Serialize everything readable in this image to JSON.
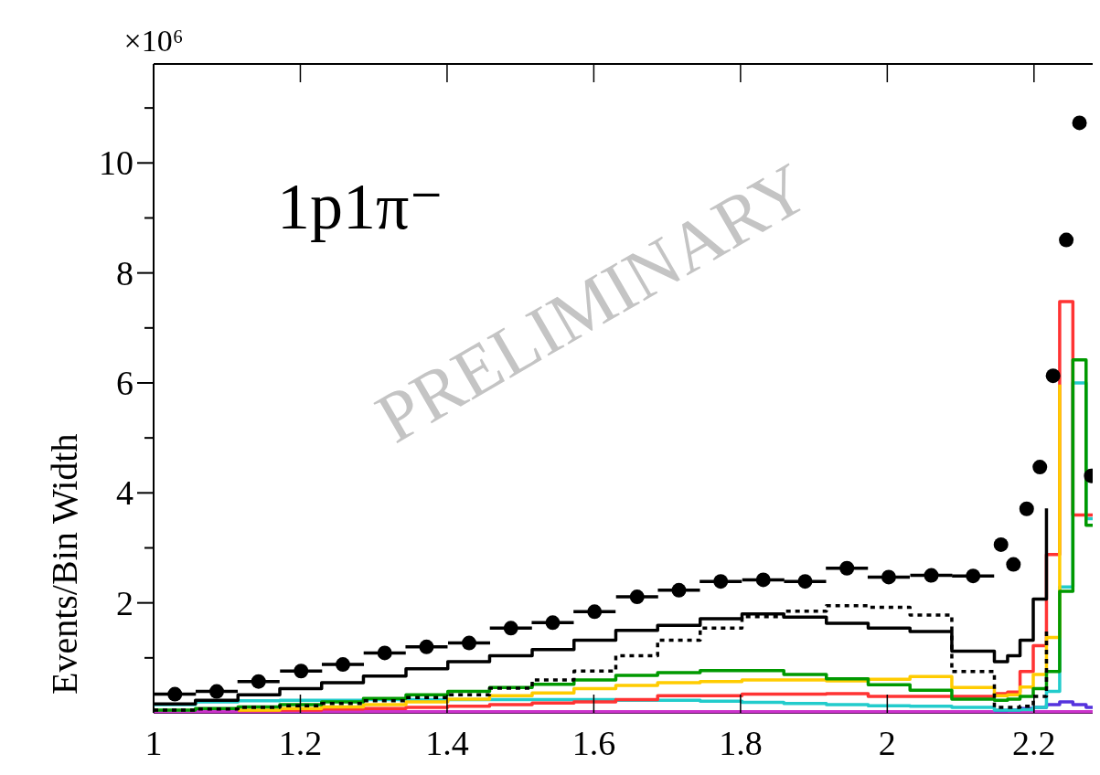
{
  "chart_data": {
    "type": "step",
    "ylabel": "Events/Bin Width",
    "xlim": [
      1,
      2.28
    ],
    "ylim": [
      0,
      11.8
    ],
    "xticks": [
      1,
      1.2,
      1.4,
      1.6,
      1.8,
      2,
      2.2
    ],
    "yticks": [
      {
        "value": 1,
        "label": null
      },
      2,
      {
        "value": 3,
        "label": null
      },
      4,
      {
        "value": 5,
        "label": null
      },
      6,
      {
        "value": 7,
        "label": null
      },
      8,
      {
        "value": 9,
        "label": null
      },
      10,
      {
        "value": 11,
        "label": null
      }
    ],
    "grid": false,
    "annotations": [
      "×10⁶",
      "1p1π⁻",
      "PRELIMINARY"
    ],
    "series": [
      {
        "color": "#cc33cc",
        "line_style": "solid",
        "x": [
          1.0,
          1.057,
          1.115,
          1.172,
          1.229,
          1.286,
          1.344,
          1.401,
          1.458,
          1.516,
          1.573,
          1.63,
          1.687,
          1.745,
          1.802,
          1.859,
          1.917,
          1.974,
          2.031,
          2.088,
          2.146,
          2.164,
          2.181,
          2.199,
          2.217,
          2.235,
          2.253,
          2.271
        ],
        "values": [
          0.02,
          0.02,
          0.02,
          0.02,
          0.02,
          0.02,
          0.02,
          0.02,
          0.02,
          0.02,
          0.02,
          0.02,
          0.02,
          0.02,
          0.02,
          0.02,
          0.02,
          0.02,
          0.02,
          0.02,
          0.02,
          0.02,
          0.02,
          0.02,
          0.02,
          0.02,
          0.02,
          0.02
        ]
      },
      {
        "color": "#5533dd",
        "line_style": "solid",
        "x": [
          2.146,
          2.164,
          2.181,
          2.199,
          2.217,
          2.235,
          2.253,
          2.271
        ],
        "values": [
          0.04,
          0.05,
          0.08,
          0.1,
          0.15,
          0.2,
          0.15,
          0.1
        ]
      },
      {
        "color": "#22cccc",
        "line_style": "solid",
        "x": [
          1.0,
          1.057,
          1.115,
          1.172,
          1.229,
          1.286,
          1.344,
          1.401,
          1.458,
          1.516,
          1.573,
          1.63,
          1.687,
          1.745,
          1.802,
          1.859,
          1.917,
          1.974,
          2.031,
          2.088,
          2.146,
          2.164,
          2.181,
          2.199,
          2.217,
          2.235,
          2.253,
          2.271
        ],
        "values": [
          0.15,
          0.2,
          0.22,
          0.23,
          0.23,
          0.24,
          0.24,
          0.24,
          0.24,
          0.24,
          0.24,
          0.23,
          0.23,
          0.21,
          0.19,
          0.17,
          0.15,
          0.13,
          0.12,
          0.1,
          0.05,
          0.05,
          0.06,
          0.1,
          0.39,
          2.29,
          6.0,
          3.53
        ]
      },
      {
        "color": "#ff3333",
        "line_style": "solid",
        "x": [
          1.115,
          1.172,
          1.229,
          1.286,
          1.344,
          1.401,
          1.458,
          1.516,
          1.573,
          1.63,
          1.687,
          1.745,
          1.802,
          1.859,
          1.917,
          1.974,
          2.031,
          2.088,
          2.146,
          2.164,
          2.181,
          2.199,
          2.217,
          2.235,
          2.253,
          2.271
        ],
        "values": [
          0.04,
          0.05,
          0.07,
          0.08,
          0.1,
          0.12,
          0.15,
          0.18,
          0.2,
          0.24,
          0.31,
          0.31,
          0.34,
          0.34,
          0.35,
          0.3,
          0.3,
          0.3,
          0.35,
          0.38,
          0.75,
          1.22,
          2.88,
          7.48,
          3.6,
          3.6
        ]
      },
      {
        "color": "#ffcc00",
        "line_style": "solid",
        "x": [
          1.115,
          1.172,
          1.229,
          1.286,
          1.344,
          1.401,
          1.458,
          1.516,
          1.573,
          1.63,
          1.687,
          1.745,
          1.802,
          1.859,
          1.917,
          1.974,
          2.031,
          2.088,
          2.146,
          2.164,
          2.181,
          2.199,
          2.217,
          2.235
        ],
        "values": [
          0.05,
          0.08,
          0.11,
          0.15,
          0.2,
          0.25,
          0.31,
          0.36,
          0.44,
          0.5,
          0.55,
          0.57,
          0.6,
          0.6,
          0.58,
          0.61,
          0.66,
          0.46,
          0.31,
          0.33,
          0.47,
          0.7,
          1.37,
          5.97
        ]
      },
      {
        "color": "#009900",
        "line_style": "solid",
        "x": [
          1.0,
          1.057,
          1.115,
          1.172,
          1.229,
          1.286,
          1.344,
          1.401,
          1.458,
          1.516,
          1.573,
          1.63,
          1.687,
          1.745,
          1.802,
          1.859,
          1.917,
          1.974,
          2.031,
          2.088,
          2.146,
          2.164,
          2.181,
          2.199,
          2.217,
          2.235,
          2.253,
          2.271
        ],
        "values": [
          0.05,
          0.08,
          0.11,
          0.15,
          0.2,
          0.26,
          0.33,
          0.39,
          0.46,
          0.52,
          0.6,
          0.68,
          0.73,
          0.77,
          0.77,
          0.7,
          0.62,
          0.51,
          0.41,
          0.25,
          0.23,
          0.25,
          0.3,
          0.44,
          0.75,
          2.21,
          6.42,
          3.41
        ]
      },
      {
        "color": "#000000",
        "line_style": "dotted",
        "x": [
          1.0,
          1.057,
          1.115,
          1.172,
          1.229,
          1.286,
          1.344,
          1.401,
          1.458,
          1.516,
          1.573,
          1.63,
          1.687,
          1.745,
          1.802,
          1.859,
          1.917,
          1.974,
          2.031,
          2.088,
          2.146,
          2.164,
          2.181,
          2.199,
          2.217
        ],
        "values": [
          0.05,
          0.07,
          0.1,
          0.13,
          0.17,
          0.22,
          0.28,
          0.33,
          0.45,
          0.6,
          0.76,
          1.04,
          1.32,
          1.54,
          1.75,
          1.85,
          1.95,
          1.92,
          1.78,
          0.75,
          0.1,
          0.1,
          0.12,
          0.3,
          1.48
        ]
      },
      {
        "color": "#000000",
        "line_style": "solid",
        "x": [
          1.0,
          1.057,
          1.115,
          1.172,
          1.229,
          1.286,
          1.344,
          1.401,
          1.458,
          1.516,
          1.573,
          1.63,
          1.687,
          1.745,
          1.802,
          1.859,
          1.917,
          1.974,
          2.031,
          2.088,
          2.146,
          2.164,
          2.181,
          2.199,
          2.217
        ],
        "values": [
          0.16,
          0.23,
          0.33,
          0.44,
          0.55,
          0.67,
          0.8,
          0.93,
          1.04,
          1.15,
          1.32,
          1.5,
          1.59,
          1.71,
          1.8,
          1.74,
          1.63,
          1.54,
          1.48,
          1.12,
          0.93,
          1.04,
          1.32,
          2.07,
          3.72
        ]
      },
      {
        "type": "scatter",
        "color": "#000000",
        "marker": "circle",
        "x": [
          1.029,
          1.086,
          1.143,
          1.201,
          1.258,
          1.315,
          1.372,
          1.43,
          1.487,
          1.544,
          1.601,
          1.659,
          1.716,
          1.773,
          1.831,
          1.888,
          1.945,
          2.002,
          2.06,
          2.117,
          2.155,
          2.172,
          2.19,
          2.208,
          2.226,
          2.244,
          2.262,
          2.278
        ],
        "values": [
          0.34,
          0.39,
          0.57,
          0.76,
          0.88,
          1.09,
          1.2,
          1.27,
          1.54,
          1.64,
          1.84,
          2.11,
          2.23,
          2.39,
          2.42,
          2.39,
          2.63,
          2.47,
          2.5,
          2.49,
          3.06,
          2.7,
          3.71,
          4.47,
          6.13,
          8.6,
          10.73,
          4.31
        ],
        "xerrors": [
          0.0287,
          0.0287,
          0.0287,
          0.0287,
          0.0287,
          0.0287,
          0.0287,
          0.0287,
          0.0287,
          0.0287,
          0.0287,
          0.0287,
          0.0287,
          0.0287,
          0.0287,
          0.0287,
          0.0287,
          0.0287,
          0.0287,
          0.0287,
          null,
          null,
          null,
          null,
          null,
          null,
          null,
          null
        ]
      }
    ]
  }
}
